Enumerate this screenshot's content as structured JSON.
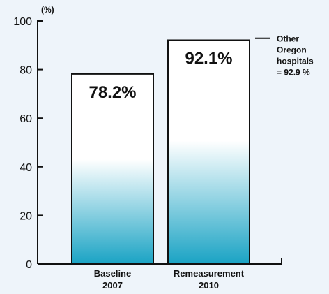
{
  "chart_data": {
    "type": "bar",
    "unit_label": "(%)",
    "categories": [
      {
        "line1": "Baseline",
        "line2": "2007"
      },
      {
        "line1": "Remeasurement",
        "line2": "2010"
      }
    ],
    "values": [
      78.2,
      92.1
    ],
    "value_labels": [
      "78.2%",
      "92.1%"
    ],
    "ylim": [
      0,
      100
    ],
    "yticks": [
      0,
      20,
      40,
      60,
      80,
      100
    ],
    "bar_gradient": [
      "#ffffff",
      "#1aa3c4"
    ],
    "reference": {
      "value": 92.9,
      "lines": [
        "Other",
        "Oregon",
        "hospitals",
        "= 92.9 %"
      ]
    },
    "grid": false
  }
}
